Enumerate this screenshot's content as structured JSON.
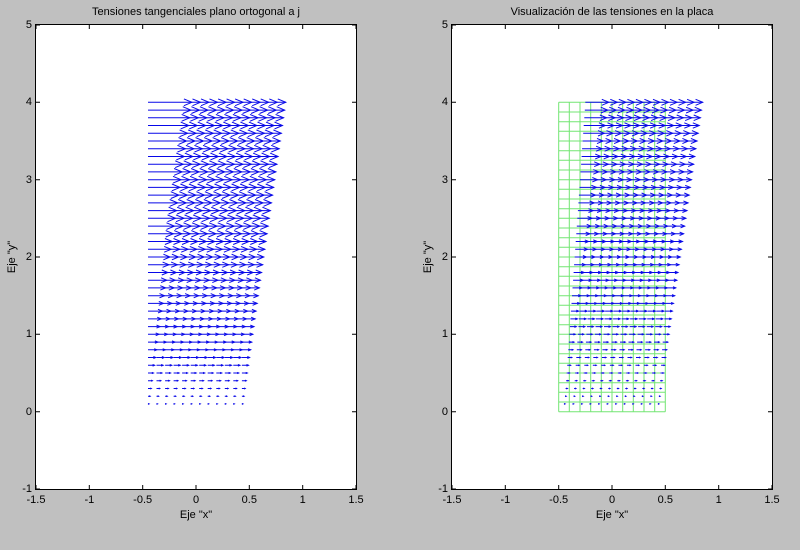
{
  "figure": {
    "background_color": "#c0c0c0",
    "plot_background_color": "#ffffff",
    "axis_color": "#000000"
  },
  "chart_data": [
    {
      "type": "quiver",
      "title": "Tensiones tangenciales plano ortogonal a j",
      "xlabel": "Eje \"x\"",
      "ylabel": "Eje \"y\"",
      "xlim": [
        -1.5,
        1.5
      ],
      "ylim": [
        -1,
        5
      ],
      "xticks": [
        -1.5,
        -1,
        -0.5,
        0,
        0.5,
        1,
        1.5
      ],
      "yticks": [
        -1,
        0,
        1,
        2,
        3,
        4,
        5
      ],
      "grid_lines": "off",
      "arrow_color": "#0808e8",
      "quiver": {
        "comment": "horizontal shear arrows, u proportional to y, v=0",
        "x_start": -0.45,
        "x_step": 0.08,
        "n_cols": 12,
        "y_start": 0.1,
        "y_step": 0.1,
        "n_rows": 40,
        "u_per_y": 0.103,
        "shear_shift_per_y": 0,
        "v": 0
      }
    },
    {
      "type": "quiver",
      "title": "Visualización de las tensiones en la placa",
      "xlabel": "Eje \"x\"",
      "ylabel": "Eje \"y\"",
      "xlim": [
        -1.5,
        1.5
      ],
      "ylim": [
        -1,
        5
      ],
      "xticks": [
        -1.5,
        -1,
        -0.5,
        0,
        0.5,
        1,
        1.5
      ],
      "yticks": [
        -1,
        0,
        1,
        2,
        3,
        4,
        5
      ],
      "grid_lines": "off",
      "arrow_color": "#0808e8",
      "mesh": {
        "comment": "green plate mesh",
        "color": "#73e573",
        "x_min": -0.5,
        "x_max": 0.5,
        "x_step": 0.1,
        "y_min": 0,
        "y_max": 4,
        "y_step": 0.125
      },
      "quiver": {
        "comment": "same shear field drawn over plate, tails displaced with y",
        "x_start": -0.45,
        "x_step": 0.08,
        "n_cols": 12,
        "y_start": 0.1,
        "y_step": 0.1,
        "n_rows": 40,
        "u_per_y": 0.055,
        "shear_shift_per_y": 0.05,
        "v": 0
      }
    }
  ]
}
